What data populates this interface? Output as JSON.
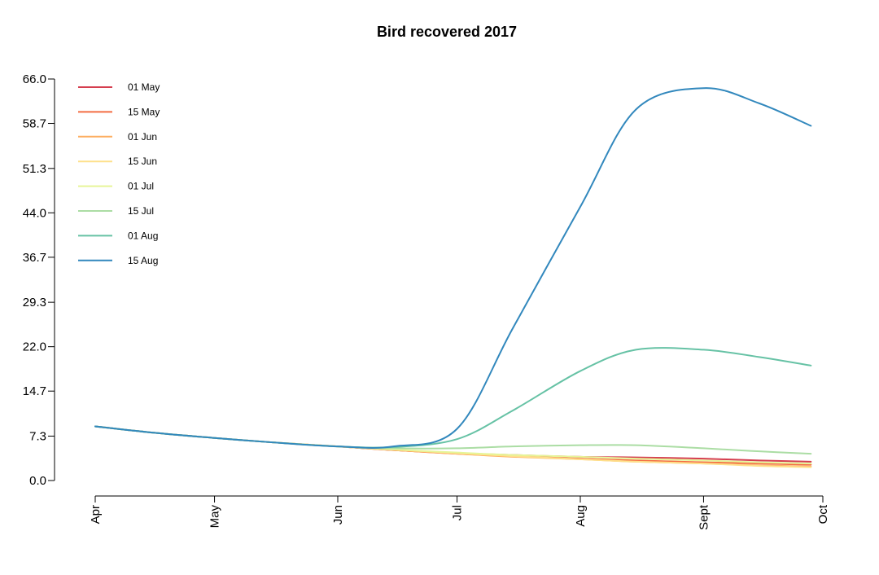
{
  "chart_data": {
    "type": "line",
    "title": "Bird recovered 2017",
    "xlabel": "",
    "ylabel": "",
    "x": [
      "2017-04-01",
      "2017-04-15",
      "2017-05-01",
      "2017-05-15",
      "2017-06-01",
      "2017-06-15",
      "2017-07-01",
      "2017-07-15",
      "2017-08-01",
      "2017-08-15",
      "2017-09-01",
      "2017-09-15",
      "2017-09-28"
    ],
    "x_ticks": [
      "2017-04-01",
      "2017-05-01",
      "2017-06-01",
      "2017-07-01",
      "2017-08-01",
      "2017-09-01",
      "2017-10-01"
    ],
    "x_tick_labels": [
      "Apr",
      "May",
      "Jun",
      "Jul",
      "Aug",
      "Sept",
      "Oct"
    ],
    "ylim": [
      0,
      66
    ],
    "y_ticks": [
      0.0,
      7.3,
      14.7,
      22.0,
      29.3,
      36.7,
      44.0,
      51.3,
      58.7,
      66.0
    ],
    "y_tick_labels": [
      "0.0",
      "7.3",
      "14.7",
      "22.0",
      "29.3",
      "36.7",
      "44.0",
      "51.3",
      "58.7",
      "66.0"
    ],
    "grid": false,
    "legend_position": "top-left",
    "series": [
      {
        "name": "01 May",
        "color": "#d53e4f",
        "values": [
          8.9,
          7.9,
          7.0,
          6.3,
          5.6,
          5.0,
          4.5,
          4.2,
          3.9,
          3.8,
          3.6,
          3.3,
          3.1
        ]
      },
      {
        "name": "15 May",
        "color": "#f46d43",
        "values": [
          8.9,
          7.9,
          7.0,
          6.3,
          5.6,
          5.0,
          4.4,
          4.0,
          3.6,
          3.3,
          3.0,
          2.8,
          2.6
        ]
      },
      {
        "name": "01 Jun",
        "color": "#fdae61",
        "values": [
          8.9,
          7.9,
          7.0,
          6.3,
          5.6,
          5.0,
          4.4,
          3.9,
          3.5,
          3.1,
          2.8,
          2.5,
          2.3
        ]
      },
      {
        "name": "15 Jun",
        "color": "#fee08b",
        "values": [
          8.9,
          7.9,
          7.0,
          6.3,
          5.6,
          5.1,
          4.5,
          4.0,
          3.5,
          3.1,
          2.8,
          2.4,
          2.2
        ]
      },
      {
        "name": "01 Jul",
        "color": "#e6f598",
        "values": [
          8.9,
          7.9,
          7.0,
          6.3,
          5.6,
          5.1,
          4.6,
          4.2,
          3.9,
          3.6,
          3.3,
          3.0,
          2.8
        ]
      },
      {
        "name": "15 Jul",
        "color": "#abdda4",
        "values": [
          8.9,
          7.9,
          7.0,
          6.3,
          5.6,
          5.3,
          5.3,
          5.6,
          5.8,
          5.8,
          5.3,
          4.8,
          4.4
        ]
      },
      {
        "name": "01 Aug",
        "color": "#66c2a5",
        "values": [
          8.9,
          7.9,
          7.0,
          6.3,
          5.6,
          5.5,
          6.8,
          11.5,
          18.0,
          21.5,
          21.5,
          20.3,
          18.9
        ]
      },
      {
        "name": "15 Aug",
        "color": "#3288bd",
        "values": [
          8.9,
          7.9,
          7.0,
          6.3,
          5.6,
          5.6,
          8.5,
          25.0,
          45.0,
          61.0,
          64.5,
          62.0,
          58.3
        ]
      }
    ]
  }
}
